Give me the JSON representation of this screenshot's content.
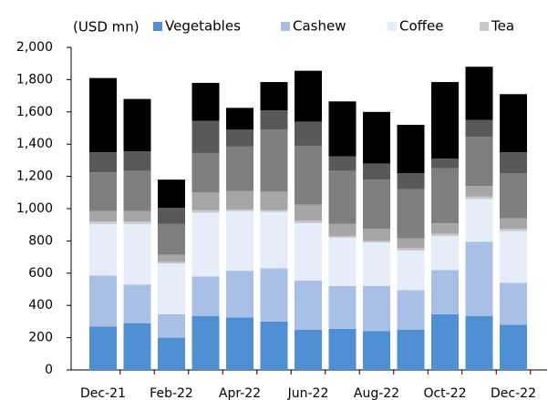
{
  "chart_data": {
    "type": "stacked_bar",
    "y_label": "(USD mn)",
    "categories": [
      "Dec-21",
      null,
      "Feb-22",
      null,
      "Apr-22",
      null,
      "Jun-22",
      null,
      "Aug-22",
      null,
      "Oct-22",
      null,
      "Dec-22"
    ],
    "series": [
      {
        "name": "Vegetables",
        "color": "#4f8fd4",
        "values": [
          270,
          290,
          200,
          335,
          325,
          300,
          250,
          255,
          240,
          250,
          345,
          335,
          280
        ]
      },
      {
        "name": "Cashew",
        "color": "#a9c0e6",
        "values": [
          315,
          240,
          145,
          245,
          290,
          330,
          305,
          265,
          280,
          245,
          275,
          460,
          260
        ]
      },
      {
        "name": "Coffee",
        "color": "#e6ecf8",
        "values": [
          320,
          375,
          315,
          395,
          370,
          350,
          355,
          300,
          270,
          245,
          210,
          265,
          320
        ]
      },
      {
        "name": "Tea",
        "color": "#c8c8c8",
        "values": [
          15,
          15,
          10,
          15,
          10,
          10,
          15,
          10,
          10,
          15,
          15,
          15,
          15
        ]
      },
      {
        "color": "#a6a6a6",
        "values": [
          65,
          65,
          45,
          110,
          115,
          115,
          100,
          75,
          75,
          60,
          65,
          65,
          65
        ]
      },
      {
        "color": "#7f7f7f",
        "values": [
          240,
          250,
          190,
          245,
          275,
          385,
          365,
          330,
          305,
          305,
          340,
          305,
          280
        ]
      },
      {
        "color": "#595959",
        "values": [
          125,
          120,
          100,
          200,
          105,
          120,
          150,
          90,
          100,
          100,
          60,
          105,
          130
        ]
      },
      {
        "color": "#000000",
        "values": [
          460,
          325,
          175,
          235,
          135,
          175,
          315,
          340,
          320,
          300,
          475,
          330,
          360
        ]
      }
    ],
    "ylim": [
      0,
      2000
    ],
    "yticks": [
      0,
      {
        "value": 200,
        "label": "200"
      },
      400,
      600,
      800,
      {
        "value": 1000,
        "label": "1,000"
      },
      {
        "value": 1200,
        "label": "1,200"
      },
      {
        "value": 1400,
        "label": "1,400"
      },
      {
        "value": 1600,
        "label": "1,600"
      },
      {
        "value": 1800,
        "label": "1,800"
      },
      {
        "value": 2000,
        "label": "2,000"
      }
    ],
    "grid": false
  }
}
